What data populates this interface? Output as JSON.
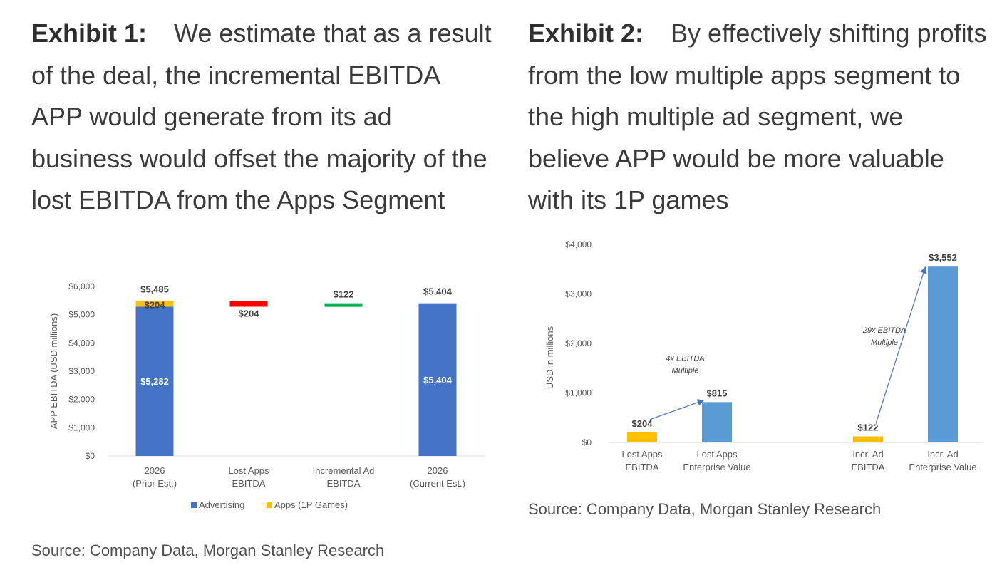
{
  "exhibit1": {
    "label": "Exhibit 1:",
    "title": "We estimate that as a result of the deal, the incremental EBITDA APP would generate from its ad business would offset the majority of the lost EBITDA from the Apps Segment",
    "source": "Source: Company Data, Morgan Stanley Research"
  },
  "exhibit2": {
    "label": "Exhibit 2:",
    "title": "By effectively shifting profits from the low multiple apps segment to the high multiple ad segment, we believe APP would be more valuable with its 1P games",
    "source": "Source: Company Data, Morgan Stanley Research"
  },
  "chart_data": [
    {
      "type": "bar",
      "subtype": "waterfall",
      "title": "",
      "xlabel": "",
      "ylabel": "APP EBITDA (USD millions)",
      "ylim": [
        0,
        6000
      ],
      "yticks": [
        0,
        1000,
        2000,
        3000,
        4000,
        5000,
        6000
      ],
      "ytick_labels": [
        "$0",
        "$1,000",
        "$2,000",
        "$3,000",
        "$4,000",
        "$5,000",
        "$6,000"
      ],
      "categories": [
        [
          "2026",
          "(Prior Est.)"
        ],
        [
          "Lost Apps",
          "EBITDA"
        ],
        [
          "Incremental Ad",
          "EBITDA"
        ],
        [
          "2026",
          "(Current Est.)"
        ]
      ],
      "series": [
        {
          "name": "Advertising",
          "color": "#4472c4",
          "values": [
            5282,
            null,
            null,
            5404
          ],
          "labels": [
            "$5,282",
            null,
            null,
            "$5,404"
          ]
        },
        {
          "name": "Apps (1P Games)",
          "color": "#ffc000",
          "values": [
            204,
            null,
            null,
            null
          ],
          "labels": [
            "$204",
            null,
            null,
            null
          ]
        }
      ],
      "waterfall_steps": [
        {
          "category_index": 1,
          "from": 5485,
          "to": 5281,
          "color": "#ff0000",
          "label": "$204"
        },
        {
          "category_index": 2,
          "from": 5281,
          "to": 5404,
          "color": "#00b050",
          "label": "$122"
        }
      ],
      "totals": [
        {
          "category_index": 0,
          "value": 5485,
          "label": "$5,485"
        },
        {
          "category_index": 3,
          "value": 5404,
          "label": "$5,404"
        }
      ],
      "legend": [
        {
          "name": "Advertising",
          "color": "#4472c4"
        },
        {
          "name": "Apps (1P Games)",
          "color": "#ffc000"
        }
      ],
      "legend_position": "bottom",
      "grid": false
    },
    {
      "type": "bar",
      "title": "",
      "xlabel": "",
      "ylabel": "USD in millions",
      "ylim": [
        0,
        4000
      ],
      "yticks": [
        0,
        1000,
        2000,
        3000,
        4000
      ],
      "ytick_labels": [
        "$0",
        "$1,000",
        "$2,000",
        "$3,000",
        "$4,000"
      ],
      "categories": [
        [
          "Lost Apps",
          "EBITDA"
        ],
        [
          "Lost Apps",
          "Enterprise Value"
        ],
        [
          "Incr. Ad",
          "EBITDA"
        ],
        [
          "Incr. Ad",
          "Enterprise Value"
        ]
      ],
      "values": [
        204,
        815,
        122,
        3552
      ],
      "labels": [
        "$204",
        "$815",
        "$122",
        "$3,552"
      ],
      "colors": [
        "#ffc000",
        "#5b9bd5",
        "#ffc000",
        "#5b9bd5"
      ],
      "annotations": [
        {
          "text": [
            "4x EBITDA",
            "Multiple"
          ],
          "from_index": 0,
          "to_index": 1
        },
        {
          "text": [
            "29x EBITDA",
            "Multiple"
          ],
          "from_index": 2,
          "to_index": 3
        }
      ],
      "grid": false
    }
  ]
}
